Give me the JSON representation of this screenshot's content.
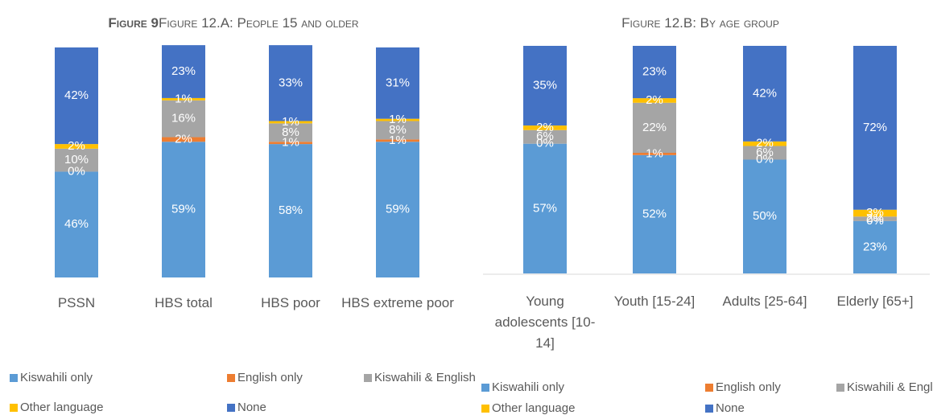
{
  "chart_data": [
    {
      "type": "stacked_bar",
      "title_bold": "Figure 9",
      "title": "Figure 12.A: People 15 and older",
      "categories": [
        "PSSN",
        "HBS total",
        "HBS poor",
        "HBS extreme poor"
      ],
      "ylim": [
        0,
        100
      ],
      "series": [
        {
          "name": "Kiswahili only",
          "color": "#5b9bd5",
          "values": [
            46,
            59,
            58,
            59
          ],
          "value_labels": [
            "46%",
            "59%",
            "58%",
            "59%"
          ]
        },
        {
          "name": "English only",
          "color": "#ed7d31",
          "values": [
            0,
            2,
            1,
            1
          ],
          "value_labels": [
            "0%",
            "2%",
            "1%",
            "1%"
          ]
        },
        {
          "name": "Kiswahili & English",
          "color": "#a5a5a5",
          "values": [
            10,
            16,
            8,
            8
          ],
          "value_labels": [
            "10%",
            "16%",
            "8%",
            "8%"
          ]
        },
        {
          "name": "Other language",
          "color": "#ffc000",
          "values": [
            2,
            1,
            1,
            1
          ],
          "value_labels": [
            "2%",
            "1%",
            "1%",
            "1%"
          ]
        },
        {
          "name": "None",
          "color": "#4472c4",
          "values": [
            42,
            23,
            33,
            31
          ],
          "value_labels": [
            "42%",
            "23%",
            "33%",
            "31%"
          ]
        }
      ]
    },
    {
      "type": "stacked_bar",
      "title": "Figure 12.B: By age group",
      "categories": [
        "Young adolescents [10-14]",
        "Youth [15-24]",
        "Adults [25-64]",
        "Elderly [65+]"
      ],
      "ylim": [
        0,
        100
      ],
      "series": [
        {
          "name": "Kiswahili only",
          "color": "#5b9bd5",
          "values": [
            57,
            52,
            50,
            23
          ],
          "value_labels": [
            "57%",
            "52%",
            "50%",
            "23%"
          ]
        },
        {
          "name": "English only",
          "color": "#ed7d31",
          "values": [
            0,
            1,
            0,
            0
          ],
          "value_labels": [
            "0%",
            "1%",
            "0%",
            "0%"
          ]
        },
        {
          "name": "Kiswahili & English",
          "color": "#a5a5a5",
          "values": [
            6,
            22,
            6,
            2
          ],
          "value_labels": [
            "6%",
            "22%",
            "6%",
            "2%"
          ]
        },
        {
          "name": "Other language",
          "color": "#ffc000",
          "values": [
            2,
            2,
            2,
            3
          ],
          "value_labels": [
            "2%",
            "2%",
            "2%",
            "3%"
          ]
        },
        {
          "name": "None",
          "color": "#4472c4",
          "values": [
            35,
            23,
            42,
            72
          ],
          "value_labels": [
            "35%",
            "23%",
            "42%",
            "72%"
          ]
        }
      ]
    }
  ]
}
